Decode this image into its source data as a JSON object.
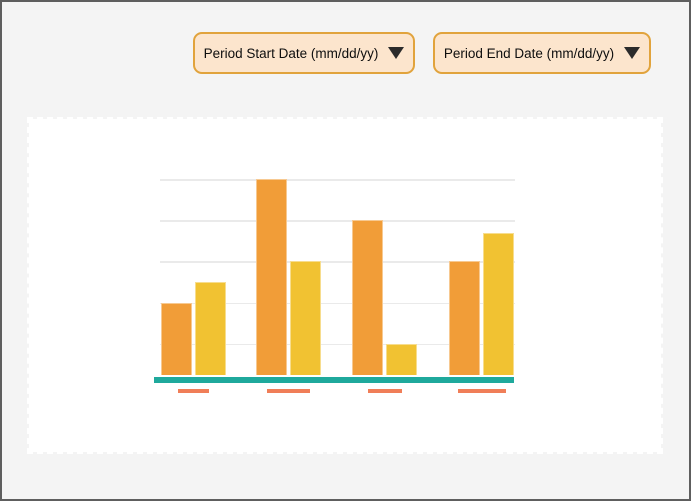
{
  "page": {
    "background": "#F4F4F4",
    "border_color": "#5E5E5E",
    "card_background": "#FFFFFF"
  },
  "filters": {
    "background": "#FCE5CD",
    "border_color": "#E1A33C",
    "start": {
      "label": "Period Start Date (mm/dd/yy)",
      "icon": "chevron-down-icon"
    },
    "end": {
      "label": "Period End Date (mm/dd/yy)",
      "icon": "chevron-down-icon"
    }
  },
  "chart_data": {
    "type": "bar",
    "title": "",
    "xlabel": "",
    "ylabel": "",
    "categories": [
      "",
      "",
      "",
      ""
    ],
    "series": [
      {
        "name": "orange",
        "color": "#F19D38",
        "values": [
          2,
          5,
          4,
          3
        ]
      },
      {
        "name": "yellow",
        "color": "#F1C232",
        "values": [
          2.5,
          3,
          1,
          3.7
        ]
      }
    ],
    "ylim": [
      0,
      5
    ],
    "gridline_values": [
      1,
      2,
      3,
      4,
      5
    ],
    "grid_on": true,
    "grid_color": "#EAEAEA",
    "legend": "none",
    "y_tick_labels": "none",
    "x_tick_labels": "redacted-placeholder-dashes",
    "axis_line_color": "#1FA99C",
    "tick_placeholder_color": "#F07E58",
    "tick_placeholder_widths": [
      31,
      43,
      34,
      48
    ]
  }
}
